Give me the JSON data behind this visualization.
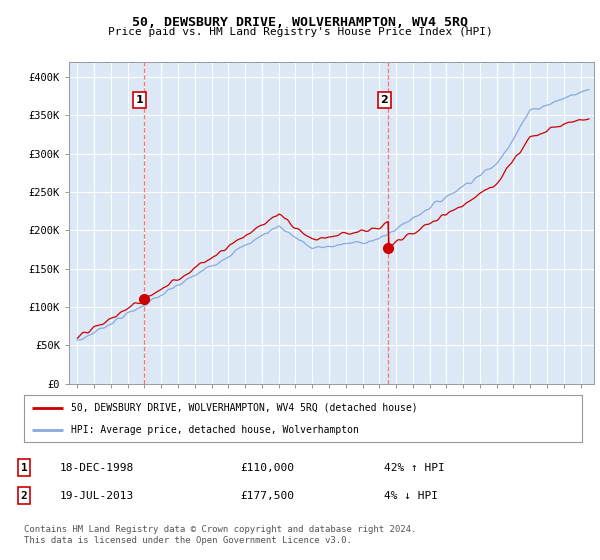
{
  "title": "50, DEWSBURY DRIVE, WOLVERHAMPTON, WV4 5RQ",
  "subtitle": "Price paid vs. HM Land Registry's House Price Index (HPI)",
  "ylim": [
    0,
    420000
  ],
  "yticks": [
    0,
    50000,
    100000,
    150000,
    200000,
    250000,
    300000,
    350000,
    400000
  ],
  "ytick_labels": [
    "£0",
    "£50K",
    "£100K",
    "£150K",
    "£200K",
    "£250K",
    "£300K",
    "£350K",
    "£400K"
  ],
  "background_color": "#ffffff",
  "plot_bg_color": "#dce8f5",
  "grid_color": "#ffffff",
  "sale1_date": "18-DEC-1998",
  "sale1_price": 110000,
  "sale1_pct": "42%",
  "sale1_dir": "↑",
  "sale2_date": "19-JUL-2013",
  "sale2_price": 177500,
  "sale2_pct": "4%",
  "sale2_dir": "↓",
  "legend_label1": "50, DEWSBURY DRIVE, WOLVERHAMPTON, WV4 5RQ (detached house)",
  "legend_label2": "HPI: Average price, detached house, Wolverhampton",
  "footer": "Contains HM Land Registry data © Crown copyright and database right 2024.\nThis data is licensed under the Open Government Licence v3.0.",
  "line_color_red": "#cc0000",
  "line_color_blue": "#88aadd",
  "marker1_x": 1998.96,
  "marker1_y": 110000,
  "marker2_x": 2013.54,
  "marker2_y": 177500,
  "vline1_x": 1998.96,
  "vline2_x": 2013.54,
  "xlim_left": 1994.5,
  "xlim_right": 2025.8
}
